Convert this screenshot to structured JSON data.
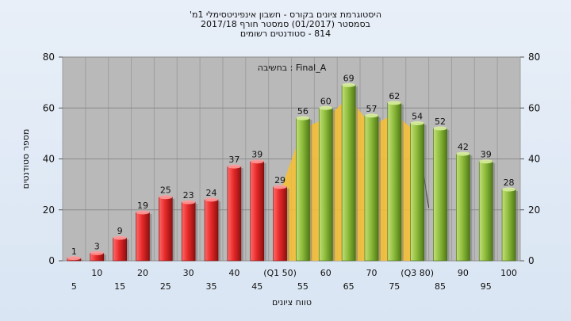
{
  "header": {
    "line1": "היסטוגרמת ציונים בקורס - חשבון אינפיניטסימלי 1מ'",
    "line2": "בסמסטר  (01/2017)  סמסטר חורף  2017/18",
    "line3": "814 - סטודנטים רשומים"
  },
  "chart_data": {
    "type": "bar",
    "title": "",
    "annotation": "בחשיבה : Final_A",
    "xlabel": "טווח ציונים",
    "ylabel": "מספר סטודנטים",
    "ylim": [
      0,
      80
    ],
    "yticks": [
      0,
      20,
      40,
      60,
      80
    ],
    "grid": true,
    "categories": [
      "5",
      "10",
      "15",
      "20",
      "25",
      "30",
      "35",
      "40",
      "45",
      "50",
      "55",
      "60",
      "65",
      "70",
      "75",
      "80",
      "85",
      "90",
      "95",
      "100"
    ],
    "tick_labels": [
      "5",
      "10",
      "15",
      "20",
      "25",
      "30",
      "35",
      "40",
      "45",
      "(Q1 50)",
      "55",
      "60",
      "65",
      "70",
      "75",
      "(Q3 80)",
      "85",
      "90",
      "95",
      "100"
    ],
    "values": [
      1,
      3,
      9,
      19,
      25,
      23,
      24,
      37,
      39,
      29,
      56,
      60,
      69,
      57,
      62,
      54,
      52,
      42,
      39,
      28
    ],
    "colors": {
      "fail": "#e82a2a",
      "pass": "#8fbd3c",
      "iqr": "#f7c02f",
      "plot_bg": "#b9b9b9"
    },
    "fail_threshold": 50,
    "iqr_band": {
      "from": "50",
      "to": "80"
    }
  }
}
